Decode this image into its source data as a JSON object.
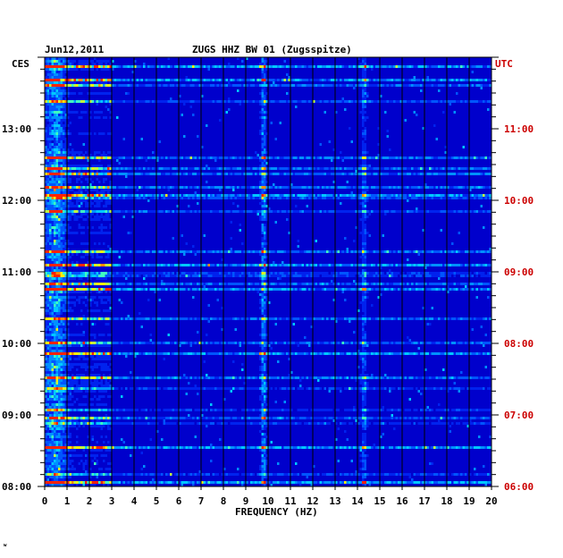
{
  "title": {
    "date": "Jun12,2011",
    "station": "ZUGS HHZ BW 01 (Zugsspitze)"
  },
  "left_axis": {
    "label": "CES",
    "ticks": [
      "13:00",
      "12:00",
      "11:00",
      "10:00",
      "09:00",
      "08:00"
    ]
  },
  "right_axis": {
    "label": "UTC",
    "ticks": [
      "11:00",
      "10:00",
      "09:00",
      "08:00",
      "07:00",
      "06:00"
    ]
  },
  "x_axis": {
    "label": "FREQUENCY (HZ)",
    "ticks": [
      "0",
      "1",
      "2",
      "3",
      "4",
      "5",
      "6",
      "7",
      "8",
      "9",
      "10",
      "11",
      "12",
      "13",
      "14",
      "15",
      "16",
      "17",
      "18",
      "19",
      "20"
    ]
  },
  "footer_mark": "ʷ",
  "colors": {
    "background": "#0000cc",
    "low": "#0022ee",
    "mid": "#00b0ff",
    "high": "#ffee00",
    "peak": "#ff2200",
    "right_axis_text": "#cc0000"
  },
  "chart_data": {
    "type": "heatmap",
    "x_label": "FREQUENCY (HZ)",
    "xlim": [
      0,
      20
    ],
    "y_left_label": "CES",
    "y_right_label": "UTC",
    "y_range_ces": [
      "08:00",
      "13:50"
    ],
    "y_range_utc": [
      "06:00",
      "11:50"
    ],
    "bands": [
      {
        "frequency_hz": 9.8,
        "intensity": "high",
        "note": "persistent line"
      },
      {
        "frequency_hz": 14.3,
        "intensity": "medium-high",
        "note": "persistent line"
      },
      {
        "frequency_hz": 0.5,
        "intensity": "high",
        "note": "broadband low-frequency bursts"
      }
    ],
    "grid": true
  }
}
